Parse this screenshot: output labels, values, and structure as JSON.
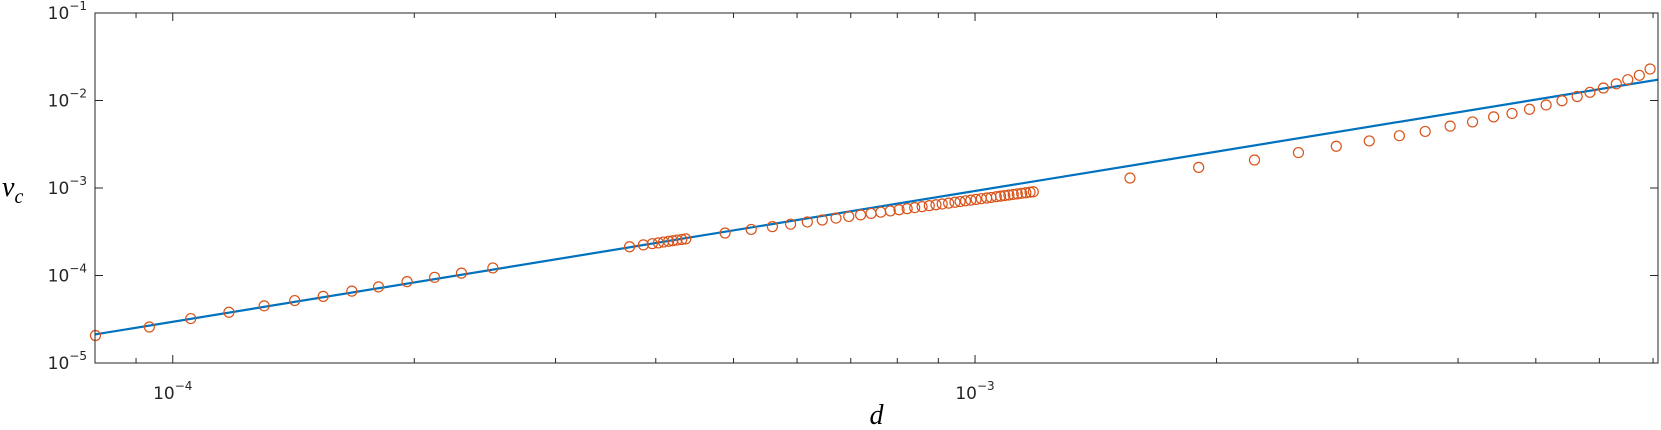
{
  "chart_data": {
    "type": "scatter",
    "xlabel": "d",
    "ylabel": "v_c",
    "xscale": "log",
    "yscale": "log",
    "xlim": [
      8e-05,
      0.0071
    ],
    "ylim": [
      1e-05,
      0.1
    ],
    "xticks": [
      {
        "value": 0.0001,
        "label": "10^{-4}"
      },
      {
        "value": 0.001,
        "label": "10^{-3}"
      }
    ],
    "xminorticks": [
      9e-05,
      0.0002,
      0.0003,
      0.0004,
      0.0005,
      0.0006,
      0.0007,
      0.0008,
      0.0009,
      0.002,
      0.003,
      0.004,
      0.005,
      0.006,
      0.007
    ],
    "yticks": [
      {
        "value": 1e-05,
        "label": "10^{-5}"
      },
      {
        "value": 0.0001,
        "label": "10^{-4}"
      },
      {
        "value": 0.001,
        "label": "10^{-3}"
      },
      {
        "value": 0.01,
        "label": "10^{-2}"
      },
      {
        "value": 0.1,
        "label": "10^{-1}"
      }
    ],
    "series": [
      {
        "type": "line",
        "color": "#0072bd",
        "x": [
          8e-05,
          0.0071
        ],
        "values": [
          2.12e-05,
          0.0173
        ]
      },
      {
        "type": "scatter",
        "color": "#d95319",
        "x": [
          8.01e-05,
          9.35e-05,
          0.0001053,
          0.0001175,
          0.00013,
          0.0001419,
          0.000154,
          0.0001672,
          0.0001805,
          0.0001959,
          0.000212,
          0.000229,
          0.0002506,
          0.000371,
          0.000386,
          0.000396,
          0.000403,
          0.000409,
          0.000415,
          0.00042,
          0.000425,
          0.000431,
          0.000436,
          0.000488,
          0.000526,
          0.000559,
          0.000589,
          0.000618,
          0.000645,
          0.000671,
          0.000696,
          0.00072,
          0.000742,
          0.000763,
          0.000784,
          0.000804,
          0.000823,
          0.000841,
          0.000859,
          0.000877,
          0.000894,
          0.00091,
          0.000927,
          0.000944,
          0.000958,
          0.000973,
          0.000988,
          0.001003,
          0.001018,
          0.001034,
          0.001047,
          0.001063,
          0.001076,
          0.001089,
          0.001102,
          0.001116,
          0.001129,
          0.001143,
          0.001157,
          0.001171,
          0.001182,
          0.00156,
          0.0019,
          0.00223,
          0.00253,
          0.00282,
          0.0031,
          0.00338,
          0.00364,
          0.00391,
          0.00417,
          0.00443,
          0.00467,
          0.00491,
          0.00515,
          0.00539,
          0.00563,
          0.00584,
          0.00607,
          0.0063,
          0.00651,
          0.00673,
          0.00694
        ],
        "values": [
          2.06e-05,
          2.58e-05,
          3.22e-05,
          3.8e-05,
          4.5e-05,
          5.17e-05,
          5.77e-05,
          6.63e-05,
          7.41e-05,
          8.51e-05,
          9.53e-05,
          0.0001065,
          0.000122,
          0.000213,
          0.000224,
          0.000231,
          0.000236,
          0.000241,
          0.000246,
          0.00025,
          0.000254,
          0.000258,
          0.000262,
          0.000306,
          0.000336,
          0.000362,
          0.000386,
          0.000409,
          0.000431,
          0.000453,
          0.000473,
          0.000493,
          0.000512,
          0.000529,
          0.000547,
          0.000564,
          0.000581,
          0.000597,
          0.000612,
          0.000629,
          0.000643,
          0.000657,
          0.000672,
          0.000687,
          0.0007,
          0.000714,
          0.000727,
          0.000741,
          0.000755,
          0.000769,
          0.00078,
          0.000795,
          0.000807,
          0.000819,
          0.000831,
          0.000844,
          0.000857,
          0.000869,
          0.000882,
          0.000896,
          0.000906,
          0.0013,
          0.00172,
          0.00209,
          0.00254,
          0.003,
          0.00345,
          0.00396,
          0.00443,
          0.00509,
          0.00569,
          0.0065,
          0.00711,
          0.00794,
          0.00889,
          0.00993,
          0.0111,
          0.0124,
          0.0139,
          0.0155,
          0.0173,
          0.0194,
          0.0229
        ]
      }
    ]
  }
}
